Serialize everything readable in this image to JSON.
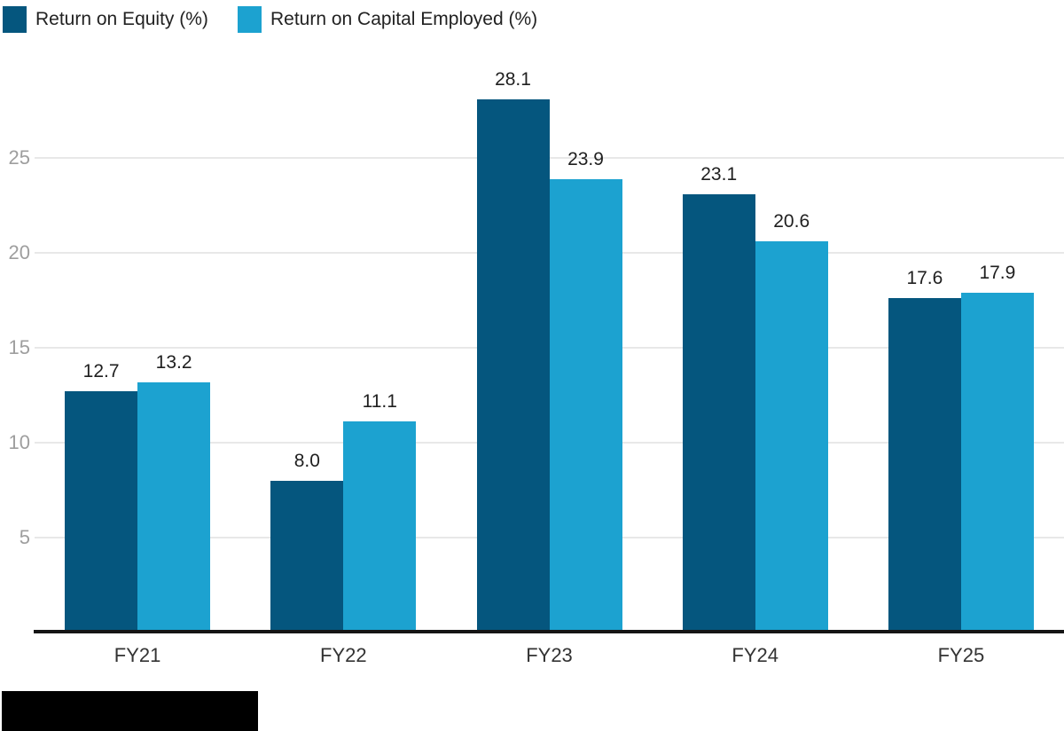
{
  "legend": {
    "items": [
      {
        "label": "Return on Equity (%)",
        "color": "#05567e"
      },
      {
        "label": "Return on Capital Employed (%)",
        "color": "#1ca2d0"
      }
    ]
  },
  "chart_data": {
    "type": "bar",
    "categories": [
      "FY21",
      "FY22",
      "FY23",
      "FY24",
      "FY25"
    ],
    "series": [
      {
        "name": "Return on Equity (%)",
        "color": "#05567e",
        "values": [
          12.7,
          8.0,
          28.1,
          23.1,
          17.6
        ]
      },
      {
        "name": "Return on Capital Employed (%)",
        "color": "#1ca2d0",
        "values": [
          13.2,
          11.1,
          23.9,
          20.6,
          17.9
        ]
      }
    ],
    "title": "",
    "xlabel": "",
    "ylabel": "",
    "ylim": [
      0,
      30
    ],
    "yticks": [
      5,
      10,
      15,
      20,
      25
    ],
    "grid": true,
    "legend_position": "top-left",
    "value_labels": true,
    "value_label_decimals": 1
  },
  "colors": {
    "gridline": "#e8e8e8",
    "axis_line": "#151515",
    "y_tick_label": "#9e9e9e",
    "x_tick_label": "#333333",
    "value_label": "#1f1f1f",
    "background": "#ffffff",
    "redaction": "#000000"
  },
  "redaction": {
    "present": "true"
  }
}
